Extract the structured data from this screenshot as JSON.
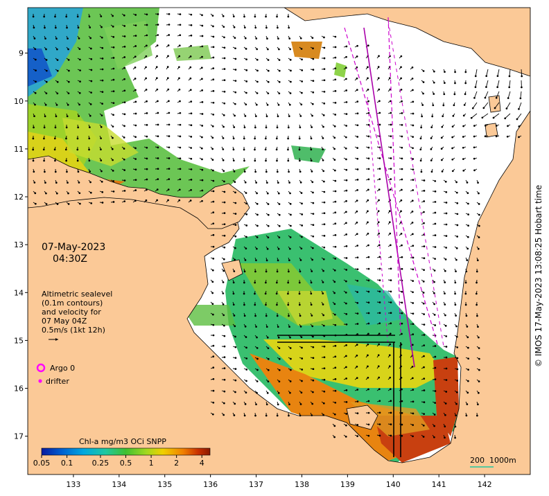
{
  "title": {
    "date": "07-May-2023",
    "time": "04:30Z"
  },
  "altimetry": {
    "lines": [
      "Altimetric sealevel",
      "(0.1m contours)",
      "and velocity for",
      "07 May 04Z",
      "0.5m/s (1kt 12h)"
    ]
  },
  "legend": {
    "argo_label": "Argo 0",
    "drifter_label": "drifter",
    "argo_color": "#ff00ff",
    "drifter_color": "#ff00ff"
  },
  "colorbar": {
    "title": "Chl-a mg/m3 OCi SNPP",
    "ticks": [
      "0.05",
      "0.1",
      "0.25",
      "0.5",
      "1",
      "2",
      "4"
    ],
    "values": [
      0.05,
      0.1,
      0.25,
      0.5,
      1,
      2,
      4
    ],
    "range": [
      0.05,
      5
    ],
    "scale": "log",
    "colors": [
      "#0a1aa0",
      "#0060d0",
      "#00a8e0",
      "#20c8a0",
      "#40c030",
      "#a0d820",
      "#f0d000",
      "#f08000",
      "#c83000",
      "#8a1a00"
    ]
  },
  "scale_bar": {
    "label": "200",
    "contour_label": "1000m"
  },
  "attribution": "© IMOS 17-May-2023 13:08:25 Hobart time",
  "axes": {
    "x_ticks": [
      "133",
      "134",
      "135",
      "136",
      "137",
      "138",
      "139",
      "140",
      "141",
      "142"
    ],
    "x_values": [
      133,
      134,
      135,
      136,
      137,
      138,
      139,
      140,
      141,
      142
    ],
    "y_ticks": [
      "9",
      "10",
      "11",
      "12",
      "13",
      "14",
      "15",
      "16",
      "17"
    ],
    "y_values": [
      -9,
      -10,
      -11,
      -12,
      -13,
      -14,
      -15,
      -16,
      -17
    ],
    "lon_range": [
      132.0,
      143.0
    ],
    "lat_range": [
      -8.05,
      -17.8
    ]
  },
  "colors": {
    "land": "#fbc997",
    "ocean_no_data": "#ffffff",
    "track_dashed": "#cc00cc",
    "track_solid": "#aa00aa",
    "arrow": "#000000"
  }
}
